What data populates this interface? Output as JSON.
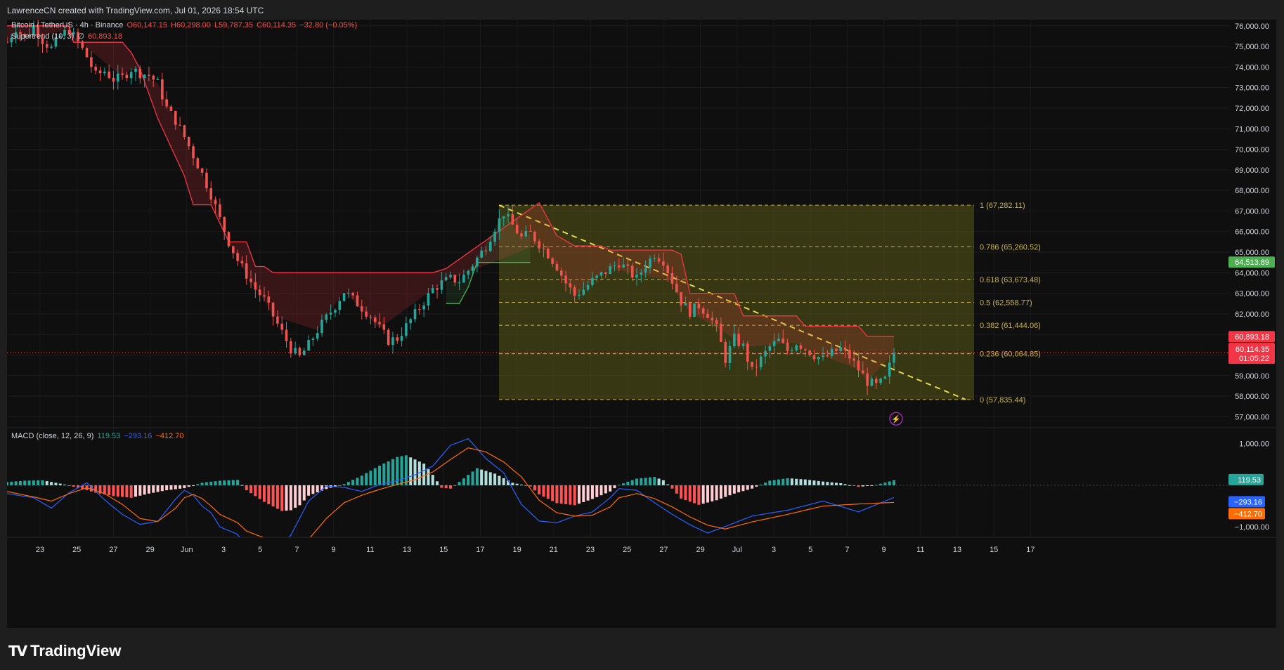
{
  "header": {
    "title": "LawrenceCN created with TradingView.com, Jul 01, 2026 18:54 UTC"
  },
  "legend": {
    "symbol": "Bitcoin / TetherUS · 4h · Binance",
    "open": "O60,147.15",
    "high": "H60,298.00",
    "low": "L59,787.35",
    "close": "C60,114.35",
    "change": "−32.80 (−0.05%)",
    "indicator_name": "Supertrend (10, 3)",
    "indicator_sep": "∅",
    "indicator_value": "60,893.18"
  },
  "macd_legend": {
    "name": "MACD (close, 12, 26, 9)",
    "hist": "119.53",
    "macd": "−293.16",
    "signal": "−412.70"
  },
  "price_badges": {
    "green": "64,513.89",
    "supertrend": "60,893.18",
    "last": "60,114.35",
    "countdown": "01:05:22"
  },
  "macd_badges": {
    "hist": "119.53",
    "macd": "−293.16",
    "signal": "−412.70"
  },
  "colors": {
    "up": "#26a69a",
    "down": "#ef5350",
    "supertrend_down": "#f23645",
    "supertrend_up": "#4caf50",
    "fib": "#c8b347",
    "fib_fill": "#5a5a18",
    "macd_line": "#2962ff",
    "signal_line": "#ff6d00",
    "bg": "#0f0f0f"
  },
  "footer": {
    "brand": "TradingView",
    "brand_icon": "tradingview-logo-icon"
  },
  "chart_data": [
    {
      "type": "candlestick",
      "title": "Bitcoin / TetherUS · 4h · Binance",
      "ylim": [
        56500,
        76300
      ],
      "y_ticks": [
        "76,000.00",
        "75,000.00",
        "74,000.00",
        "73,000.00",
        "72,000.00",
        "71,000.00",
        "70,000.00",
        "69,000.00",
        "68,000.00",
        "67,000.00",
        "66,000.00",
        "65,000.00",
        "64,000.00",
        "63,000.00",
        "62,000.00",
        "61,000.00",
        "60,000.00",
        "59,000.00",
        "58,000.00",
        "57,000.00"
      ],
      "x_ticks": [
        "23",
        "25",
        "27",
        "29",
        "Jun",
        "3",
        "5",
        "7",
        "9",
        "11",
        "13",
        "15",
        "17",
        "19",
        "21",
        "23",
        "25",
        "27",
        "29",
        "Jul",
        "3",
        "5",
        "7",
        "9",
        "11",
        "13",
        "15",
        "17"
      ],
      "price_path": [
        [
          0,
          75200
        ],
        [
          2,
          75900
        ],
        [
          4,
          75400
        ],
        [
          6,
          76000
        ],
        [
          8,
          75300
        ],
        [
          10,
          74900
        ],
        [
          12,
          75500
        ],
        [
          14,
          75800
        ],
        [
          16,
          75200
        ],
        [
          18,
          74500
        ],
        [
          20,
          73600
        ],
        [
          22,
          73800
        ],
        [
          24,
          73400
        ],
        [
          26,
          73500
        ],
        [
          28,
          73900
        ],
        [
          30,
          73700
        ],
        [
          32,
          73600
        ],
        [
          34,
          73200
        ],
        [
          36,
          72000
        ],
        [
          38,
          71400
        ],
        [
          40,
          70600
        ],
        [
          42,
          69700
        ],
        [
          44,
          68800
        ],
        [
          46,
          67800
        ],
        [
          48,
          66600
        ],
        [
          50,
          65500
        ],
        [
          52,
          64600
        ],
        [
          54,
          63900
        ],
        [
          56,
          63200
        ],
        [
          58,
          62700
        ],
        [
          60,
          61900
        ],
        [
          62,
          61100
        ],
        [
          64,
          60300
        ],
        [
          66,
          59900
        ],
        [
          68,
          60500
        ],
        [
          70,
          61200
        ],
        [
          72,
          61800
        ],
        [
          74,
          62400
        ],
        [
          76,
          63100
        ],
        [
          78,
          62700
        ],
        [
          80,
          62300
        ],
        [
          82,
          61900
        ],
        [
          84,
          61300
        ],
        [
          86,
          60700
        ],
        [
          88,
          60800
        ],
        [
          90,
          61400
        ],
        [
          92,
          62000
        ],
        [
          94,
          62600
        ],
        [
          96,
          63200
        ],
        [
          98,
          63500
        ],
        [
          100,
          63700
        ],
        [
          102,
          63600
        ],
        [
          104,
          64100
        ],
        [
          106,
          64700
        ],
        [
          108,
          65300
        ],
        [
          110,
          66200
        ],
        [
          112,
          66900
        ],
        [
          114,
          66300
        ],
        [
          116,
          65700
        ],
        [
          118,
          65900
        ],
        [
          120,
          65400
        ],
        [
          122,
          64900
        ],
        [
          124,
          64300
        ],
        [
          126,
          63500
        ],
        [
          128,
          62900
        ],
        [
          130,
          63200
        ],
        [
          132,
          63600
        ],
        [
          134,
          63900
        ],
        [
          136,
          64200
        ],
        [
          138,
          64500
        ],
        [
          140,
          64100
        ],
        [
          142,
          63700
        ],
        [
          144,
          64400
        ],
        [
          146,
          64900
        ],
        [
          148,
          64600
        ],
        [
          150,
          63600
        ],
        [
          152,
          62600
        ],
        [
          154,
          62100
        ],
        [
          156,
          62400
        ],
        [
          158,
          62000
        ],
        [
          160,
          61300
        ],
        [
          162,
          59800
        ],
        [
          164,
          60800
        ],
        [
          166,
          60400
        ],
        [
          168,
          59200
        ],
        [
          170,
          59800
        ],
        [
          172,
          60400
        ],
        [
          174,
          60700
        ],
        [
          176,
          60200
        ],
        [
          178,
          60600
        ],
        [
          180,
          60300
        ],
        [
          182,
          60000
        ],
        [
          184,
          59800
        ],
        [
          186,
          60100
        ],
        [
          188,
          60300
        ],
        [
          190,
          59900
        ],
        [
          192,
          59300
        ],
        [
          194,
          58700
        ],
        [
          196,
          58500
        ],
        [
          198,
          58800
        ],
        [
          200,
          60114
        ]
      ],
      "supertrend": {
        "value": 60893.18,
        "down_segments": [
          [
            0,
            76000
          ],
          [
            14,
            76000
          ],
          [
            15,
            75200
          ],
          [
            26,
            75200
          ],
          [
            28,
            74700
          ],
          [
            30,
            73900
          ],
          [
            34,
            71500
          ],
          [
            40,
            68700
          ],
          [
            42,
            67300
          ],
          [
            46,
            67300
          ],
          [
            50,
            65500
          ],
          [
            54,
            65500
          ],
          [
            56,
            64300
          ],
          [
            58,
            64300
          ],
          [
            60,
            64000
          ],
          [
            70,
            64000
          ],
          [
            76,
            64000
          ],
          [
            84,
            64000
          ],
          [
            96,
            64000
          ],
          [
            99,
            64200
          ],
          [
            120,
            67400
          ],
          [
            124,
            65800
          ],
          [
            128,
            65300
          ],
          [
            134,
            65300
          ],
          [
            136,
            65100
          ],
          [
            150,
            65100
          ],
          [
            152,
            64900
          ],
          [
            154,
            63000
          ],
          [
            164,
            63000
          ],
          [
            166,
            61900
          ],
          [
            178,
            61900
          ],
          [
            180,
            61400
          ],
          [
            192,
            61400
          ],
          [
            194,
            60900
          ],
          [
            200,
            60893
          ]
        ],
        "up_segments": [
          [
            99,
            62500
          ],
          [
            102,
            62500
          ],
          [
            104,
            63300
          ],
          [
            106,
            64500
          ],
          [
            112,
            64500
          ],
          [
            116,
            64500
          ],
          [
            118,
            64500
          ]
        ]
      },
      "fib_levels": [
        {
          "ratio": "1",
          "price": 67282.11,
          "label": "1 (67,282.11)"
        },
        {
          "ratio": "0.786",
          "price": 65260.52,
          "label": "0.786 (65,260.52)"
        },
        {
          "ratio": "0.618",
          "price": 63673.48,
          "label": "0.618 (63,673.48)"
        },
        {
          "ratio": "0.5",
          "price": 62558.77,
          "label": "0.5 (62,558.77)"
        },
        {
          "ratio": "0.382",
          "price": 61444.06,
          "label": "0.382 (61,444.06)"
        },
        {
          "ratio": "0.236",
          "price": 60064.85,
          "label": "0.236 (60,064.85)"
        },
        {
          "ratio": "0",
          "price": 57835.44,
          "label": "0 (57,835.44)"
        }
      ],
      "trendline": [
        [
          67282.11
        ],
        [
          57835.44
        ]
      ]
    },
    {
      "type": "macd",
      "title": "MACD (close, 12, 26, 9)",
      "ylim": [
        -1250,
        1350
      ],
      "y_ticks": [
        "1,000.00",
        "−1,000.00"
      ],
      "histogram": [
        [
          0,
          80
        ],
        [
          4,
          110
        ],
        [
          8,
          120
        ],
        [
          12,
          40
        ],
        [
          16,
          -60
        ],
        [
          20,
          -180
        ],
        [
          24,
          -260
        ],
        [
          28,
          -300
        ],
        [
          32,
          -200
        ],
        [
          36,
          -120
        ],
        [
          40,
          -70
        ],
        [
          44,
          60
        ],
        [
          48,
          110
        ],
        [
          52,
          130
        ],
        [
          54,
          -120
        ],
        [
          58,
          -400
        ],
        [
          62,
          -620
        ],
        [
          64,
          -600
        ],
        [
          66,
          -480
        ],
        [
          68,
          -250
        ],
        [
          72,
          -90
        ],
        [
          76,
          30
        ],
        [
          80,
          230
        ],
        [
          84,
          470
        ],
        [
          88,
          680
        ],
        [
          90,
          720
        ],
        [
          94,
          520
        ],
        [
          96,
          250
        ],
        [
          98,
          -60
        ],
        [
          100,
          -80
        ],
        [
          102,
          80
        ],
        [
          104,
          250
        ],
        [
          106,
          410
        ],
        [
          110,
          280
        ],
        [
          114,
          60
        ],
        [
          118,
          -30
        ],
        [
          120,
          -220
        ],
        [
          124,
          -430
        ],
        [
          128,
          -480
        ],
        [
          132,
          -330
        ],
        [
          136,
          -150
        ],
        [
          138,
          10
        ],
        [
          142,
          160
        ],
        [
          146,
          200
        ],
        [
          148,
          120
        ],
        [
          150,
          -80
        ],
        [
          152,
          -320
        ],
        [
          156,
          -470
        ],
        [
          160,
          -360
        ],
        [
          164,
          -200
        ],
        [
          168,
          -80
        ],
        [
          172,
          110
        ],
        [
          176,
          170
        ],
        [
          180,
          140
        ],
        [
          184,
          90
        ],
        [
          188,
          50
        ],
        [
          192,
          -40
        ],
        [
          196,
          10
        ],
        [
          200,
          119.53
        ]
      ],
      "macd_line": [
        [
          0,
          -200
        ],
        [
          6,
          -300
        ],
        [
          10,
          -550
        ],
        [
          14,
          -180
        ],
        [
          18,
          60
        ],
        [
          22,
          -350
        ],
        [
          26,
          -700
        ],
        [
          30,
          -940
        ],
        [
          34,
          -870
        ],
        [
          38,
          -330
        ],
        [
          40,
          -120
        ],
        [
          42,
          -240
        ],
        [
          44,
          -500
        ],
        [
          46,
          -660
        ],
        [
          48,
          -1000
        ],
        [
          52,
          -1180
        ],
        [
          54,
          -1500
        ],
        [
          60,
          -1700
        ],
        [
          64,
          -1200
        ],
        [
          68,
          -380
        ],
        [
          72,
          -20
        ],
        [
          76,
          -50
        ],
        [
          80,
          -150
        ],
        [
          84,
          20
        ],
        [
          88,
          110
        ],
        [
          92,
          250
        ],
        [
          96,
          460
        ],
        [
          100,
          960
        ],
        [
          104,
          1120
        ],
        [
          108,
          640
        ],
        [
          112,
          300
        ],
        [
          116,
          -460
        ],
        [
          120,
          -860
        ],
        [
          124,
          -900
        ],
        [
          128,
          -740
        ],
        [
          132,
          -640
        ],
        [
          136,
          -300
        ],
        [
          138,
          -80
        ],
        [
          142,
          -120
        ],
        [
          146,
          -420
        ],
        [
          150,
          -700
        ],
        [
          154,
          -950
        ],
        [
          158,
          -1150
        ],
        [
          162,
          -990
        ],
        [
          168,
          -740
        ],
        [
          176,
          -600
        ],
        [
          184,
          -380
        ],
        [
          192,
          -640
        ],
        [
          200,
          -293.16
        ]
      ],
      "signal_line": [
        [
          0,
          -150
        ],
        [
          6,
          -280
        ],
        [
          10,
          -380
        ],
        [
          14,
          -200
        ],
        [
          18,
          -60
        ],
        [
          22,
          -200
        ],
        [
          26,
          -460
        ],
        [
          30,
          -800
        ],
        [
          34,
          -870
        ],
        [
          38,
          -550
        ],
        [
          40,
          -300
        ],
        [
          42,
          -220
        ],
        [
          44,
          -320
        ],
        [
          46,
          -500
        ],
        [
          48,
          -700
        ],
        [
          52,
          -900
        ],
        [
          54,
          -1100
        ],
        [
          60,
          -1350
        ],
        [
          64,
          -1500
        ],
        [
          68,
          -1300
        ],
        [
          72,
          -800
        ],
        [
          76,
          -420
        ],
        [
          80,
          -240
        ],
        [
          84,
          -100
        ],
        [
          88,
          20
        ],
        [
          92,
          130
        ],
        [
          96,
          320
        ],
        [
          100,
          620
        ],
        [
          104,
          900
        ],
        [
          108,
          800
        ],
        [
          112,
          560
        ],
        [
          116,
          200
        ],
        [
          120,
          -360
        ],
        [
          124,
          -660
        ],
        [
          128,
          -740
        ],
        [
          132,
          -720
        ],
        [
          136,
          -520
        ],
        [
          138,
          -300
        ],
        [
          142,
          -200
        ],
        [
          146,
          -320
        ],
        [
          150,
          -520
        ],
        [
          154,
          -760
        ],
        [
          158,
          -960
        ],
        [
          162,
          -1050
        ],
        [
          168,
          -880
        ],
        [
          176,
          -700
        ],
        [
          184,
          -500
        ],
        [
          192,
          -450
        ],
        [
          200,
          -412.7
        ]
      ]
    }
  ]
}
